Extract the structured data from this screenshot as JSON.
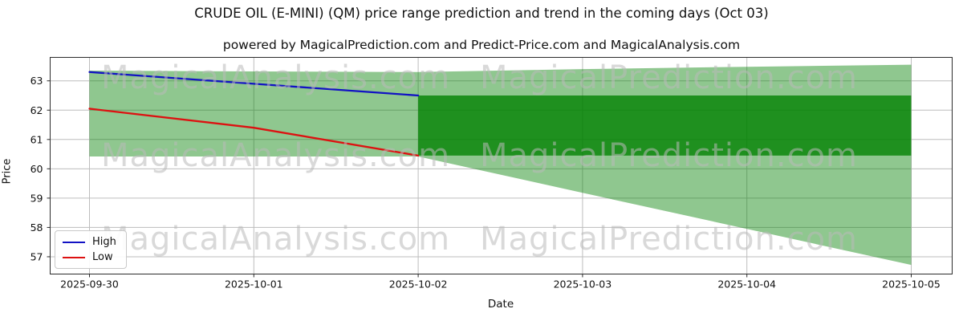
{
  "title": "CRUDE OIL (E-MINI) (QM) price range prediction and trend in the coming days (Oct 03)",
  "subtitle": "powered by MagicalPrediction.com and Predict-Price.com and MagicalAnalysis.com",
  "axes": {
    "x_label": "Date",
    "y_label": "Price",
    "x_ticks": [
      "2025-09-30",
      "2025-10-01",
      "2025-10-02",
      "2025-10-03",
      "2025-10-04",
      "2025-10-05"
    ],
    "y_ticks": [
      57,
      58,
      59,
      60,
      61,
      62,
      63
    ]
  },
  "legend": {
    "items": [
      {
        "label": "High",
        "color": "#1212c4"
      },
      {
        "label": "Low",
        "color": "#dd1111"
      }
    ]
  },
  "watermarks": {
    "left_text": "MagicalAnalysis.com",
    "right_text": "MagicalPrediction.com"
  },
  "colors": {
    "high_line": "#1212c4",
    "low_line": "#dd1111",
    "band_base": "#008000",
    "grid": "#bdbdbd",
    "spine": "#2b2b2b",
    "text": "#111111"
  },
  "chart_data": {
    "type": "line",
    "title": "CRUDE OIL (E-MINI) (QM) price range prediction and trend in the coming days (Oct 03)",
    "xlabel": "Date",
    "ylabel": "Price",
    "x": [
      "2025-09-30",
      "2025-10-01",
      "2025-10-02",
      "2025-10-03",
      "2025-10-04",
      "2025-10-05"
    ],
    "ylim": [
      56.41,
      63.8
    ],
    "grid": true,
    "legend_position": "lower left",
    "series": [
      {
        "name": "High",
        "color": "#1212c4",
        "dates": [
          "2025-09-30",
          "2025-10-01",
          "2025-10-02"
        ],
        "values": [
          63.3,
          62.9,
          62.5
        ]
      },
      {
        "name": "Low",
        "color": "#dd1111",
        "dates": [
          "2025-09-30",
          "2025-10-01",
          "2025-10-02"
        ],
        "values": [
          62.05,
          61.4,
          60.45
        ]
      }
    ],
    "bands": [
      {
        "name": "outer-prediction-range",
        "color": "#008000",
        "opacity": 0.44,
        "dates": [
          "2025-09-30",
          "2025-10-01",
          "2025-10-02",
          "2025-10-03",
          "2025-10-04",
          "2025-10-05"
        ],
        "top": [
          63.35,
          63.32,
          63.3,
          63.4,
          63.48,
          63.55
        ],
        "bottom": [
          60.42,
          60.42,
          60.42,
          59.18,
          57.95,
          56.72
        ]
      },
      {
        "name": "inner-prediction-range",
        "color": "#008000",
        "opacity": 0.78,
        "dates": [
          "2025-10-02",
          "2025-10-03",
          "2025-10-04",
          "2025-10-05"
        ],
        "top": [
          62.5,
          62.5,
          62.5,
          62.5
        ],
        "bottom": [
          60.45,
          60.45,
          60.45,
          60.45
        ]
      }
    ]
  }
}
